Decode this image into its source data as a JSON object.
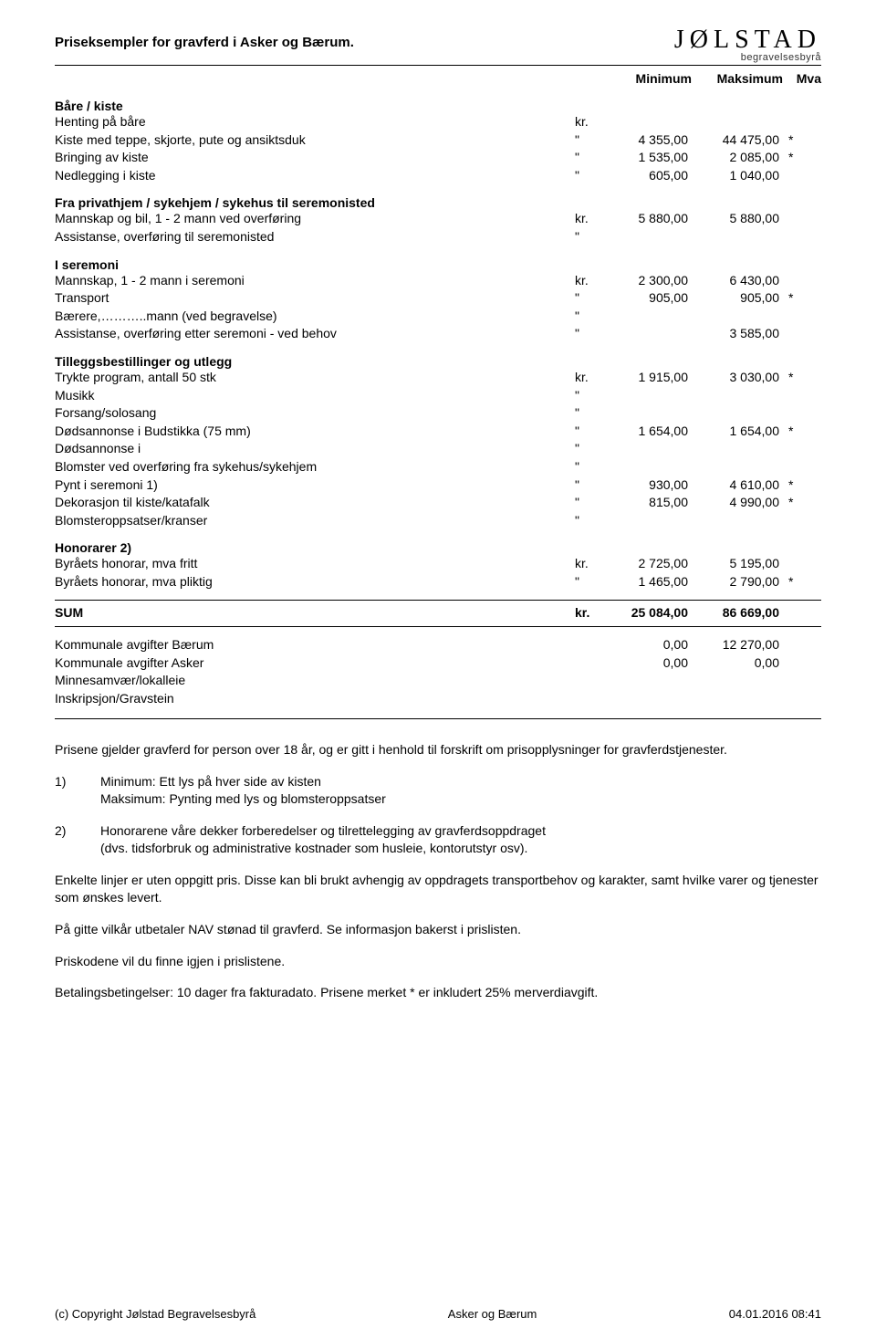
{
  "header": {
    "title": "Priseksempler for gravferd i Asker og Bærum.",
    "logo_main": "JØLSTAD",
    "logo_sub": "begravelsesbyrå"
  },
  "columns": {
    "min": "Minimum",
    "max": "Maksimum",
    "mva": "Mva"
  },
  "sections": [
    {
      "title": "Båre / kiste",
      "rows": [
        {
          "label": "Henting på båre",
          "unit": "kr.",
          "min": "",
          "max": "",
          "mva": ""
        },
        {
          "label": "Kiste med teppe, skjorte, pute og ansiktsduk",
          "unit": "\"",
          "min": "4 355,00",
          "max": "44 475,00",
          "mva": "*"
        },
        {
          "label": "Bringing av kiste",
          "unit": "\"",
          "min": "1 535,00",
          "max": "2 085,00",
          "mva": "*"
        },
        {
          "label": "Nedlegging i kiste",
          "unit": "\"",
          "min": "605,00",
          "max": "1 040,00",
          "mva": ""
        }
      ]
    },
    {
      "title": "Fra privathjem / sykehjem / sykehus til seremonisted",
      "rows": [
        {
          "label": "Mannskap og bil, 1 - 2 mann ved overføring",
          "unit": "kr.",
          "min": "5 880,00",
          "max": "5 880,00",
          "mva": ""
        },
        {
          "label": "Assistanse, overføring til seremonisted",
          "unit": "\"",
          "min": "",
          "max": "",
          "mva": ""
        }
      ]
    },
    {
      "title": "I seremoni",
      "rows": [
        {
          "label": "Mannskap, 1 - 2 mann i seremoni",
          "unit": "kr.",
          "min": "2 300,00",
          "max": "6 430,00",
          "mva": ""
        },
        {
          "label": "Transport",
          "unit": "\"",
          "min": "905,00",
          "max": "905,00",
          "mva": "*"
        },
        {
          "label": "Bærere,………..mann (ved begravelse)",
          "unit": "\"",
          "min": "",
          "max": "",
          "mva": ""
        },
        {
          "label": "Assistanse, overføring etter seremoni - ved behov",
          "unit": "\"",
          "min": "",
          "max": "3 585,00",
          "mva": ""
        }
      ]
    },
    {
      "title": "Tilleggsbestillinger og utlegg",
      "rows": [
        {
          "label": "Trykte program, antall 50 stk",
          "unit": "kr.",
          "min": "1 915,00",
          "max": "3 030,00",
          "mva": "*"
        },
        {
          "label": "Musikk",
          "unit": "\"",
          "min": "",
          "max": "",
          "mva": ""
        },
        {
          "label": "Forsang/solosang",
          "unit": "\"",
          "min": "",
          "max": "",
          "mva": ""
        },
        {
          "label": "Dødsannonse i Budstikka  (75 mm)",
          "unit": "\"",
          "min": "1 654,00",
          "max": "1 654,00",
          "mva": "*"
        },
        {
          "label": "Dødsannonse i",
          "unit": "\"",
          "min": "",
          "max": "",
          "mva": ""
        },
        {
          "label": "Blomster ved overføring fra sykehus/sykehjem",
          "unit": "\"",
          "min": "",
          "max": "",
          "mva": ""
        },
        {
          "label": "Pynt i seremoni   1)",
          "unit": "\"",
          "min": "930,00",
          "max": "4 610,00",
          "mva": "*"
        },
        {
          "label": "Dekorasjon til kiste/katafalk",
          "unit": "\"",
          "min": "815,00",
          "max": "4 990,00",
          "mva": "*"
        },
        {
          "label": "Blomsteroppsatser/kranser",
          "unit": "\"",
          "min": "",
          "max": "",
          "mva": ""
        }
      ]
    },
    {
      "title": "Honorarer   2)",
      "rows": [
        {
          "label": "Byråets honorar, mva fritt",
          "unit": "kr.",
          "min": "2 725,00",
          "max": "5 195,00",
          "mva": ""
        },
        {
          "label": "Byråets honorar, mva pliktig",
          "unit": "\"",
          "min": "1 465,00",
          "max": "2 790,00",
          "mva": "*"
        }
      ]
    }
  ],
  "sum": {
    "label": "SUM",
    "unit": "kr.",
    "min": "25 084,00",
    "max": "86 669,00",
    "mva": ""
  },
  "after": [
    {
      "label": "Kommunale avgifter Bærum",
      "unit": "",
      "min": "0,00",
      "max": "12 270,00",
      "mva": ""
    },
    {
      "label": "Kommunale avgifter Asker",
      "unit": "",
      "min": "0,00",
      "max": "0,00",
      "mva": ""
    },
    {
      "label": "Minnesamvær/lokalleie",
      "unit": "",
      "min": "",
      "max": "",
      "mva": ""
    },
    {
      "label": "Inskripsjon/Gravstein",
      "unit": "",
      "min": "",
      "max": "",
      "mva": ""
    }
  ],
  "notes": {
    "intro": "Prisene gjelder gravferd for person over 18 år, og er gitt i henhold til forskrift om prisopplysninger for gravferdstjenester.",
    "n1_num": "1)",
    "n1_l1": "Minimum: Ett lys på hver side av kisten",
    "n1_l2": "Maksimum: Pynting med lys og blomsteroppsatser",
    "n2_num": "2)",
    "n2_l1": "Honorarene våre dekker forberedelser og tilrettelegging av gravferdsoppdraget",
    "n2_l2": "(dvs. tidsforbruk og administrative kostnader som husleie, kontorutstyr osv).",
    "p3": "Enkelte linjer er uten oppgitt pris. Disse kan bli brukt avhengig av oppdragets transportbehov og karakter, samt hvilke varer og tjenester som ønskes levert.",
    "p4": "På gitte vilkår utbetaler NAV stønad til gravferd. Se informasjon bakerst i prislisten.",
    "p5": "Priskodene vil du finne igjen i prislistene.",
    "p6": "Betalingsbetingelser: 10 dager fra fakturadato. Prisene merket * er inkludert 25% merverdiavgift."
  },
  "footer": {
    "left": "(c) Copyright Jølstad Begravelsesbyrå",
    "center": "Asker og Bærum",
    "right": "04.01.2016 08:41"
  }
}
